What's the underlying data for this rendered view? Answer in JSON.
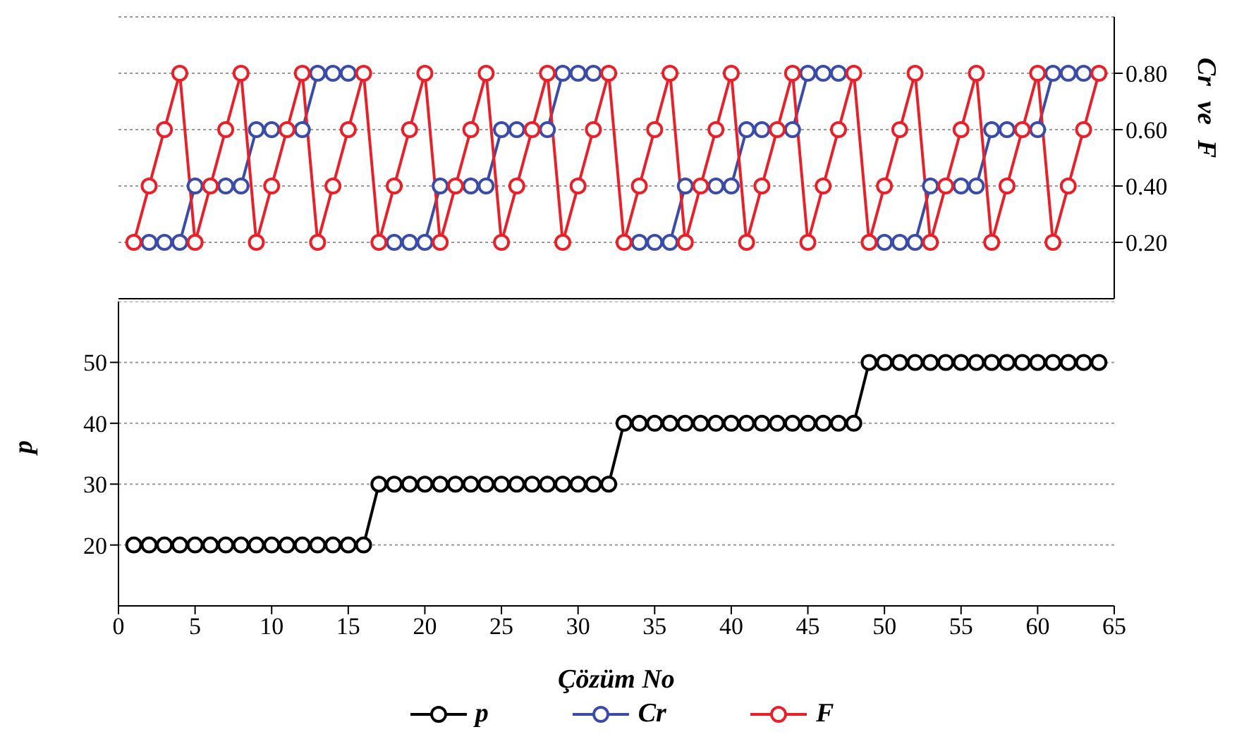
{
  "chart_data": [
    {
      "type": "line",
      "y2label": "Cr ve F",
      "x": [
        1,
        2,
        3,
        4,
        5,
        6,
        7,
        8,
        9,
        10,
        11,
        12,
        13,
        14,
        15,
        16,
        17,
        18,
        19,
        20,
        21,
        22,
        23,
        24,
        25,
        26,
        27,
        28,
        29,
        30,
        31,
        32,
        33,
        34,
        35,
        36,
        37,
        38,
        39,
        40,
        41,
        42,
        43,
        44,
        45,
        46,
        47,
        48,
        49,
        50,
        51,
        52,
        53,
        54,
        55,
        56,
        57,
        58,
        59,
        60,
        61,
        62,
        63,
        64
      ],
      "series": [
        {
          "name": "Cr",
          "color": "#3b4ba8",
          "axis": "y2",
          "values": [
            null,
            0.2,
            0.2,
            0.2,
            0.4,
            null,
            0.4,
            0.4,
            0.6,
            0.6,
            null,
            0.6,
            0.8,
            0.8,
            0.8,
            null,
            null,
            0.2,
            0.2,
            0.2,
            0.4,
            null,
            0.4,
            0.4,
            0.6,
            0.6,
            null,
            0.6,
            0.8,
            0.8,
            0.8,
            null,
            null,
            0.2,
            0.2,
            0.2,
            0.4,
            null,
            0.4,
            0.4,
            0.6,
            0.6,
            null,
            0.6,
            0.8,
            0.8,
            0.8,
            null,
            null,
            0.2,
            0.2,
            0.2,
            0.4,
            null,
            0.4,
            0.4,
            0.6,
            0.6,
            null,
            0.6,
            0.8,
            0.8,
            0.8,
            null
          ]
        },
        {
          "name": "F",
          "color": "#e8202a",
          "axis": "y2",
          "values": [
            0.2,
            0.4,
            0.6,
            0.8,
            0.2,
            0.4,
            0.6,
            0.8,
            0.2,
            0.4,
            0.6,
            0.8,
            0.2,
            0.4,
            0.6,
            0.8,
            0.2,
            0.4,
            0.6,
            0.8,
            0.2,
            0.4,
            0.6,
            0.8,
            0.2,
            0.4,
            0.6,
            0.8,
            0.2,
            0.4,
            0.6,
            0.8,
            0.2,
            0.4,
            0.6,
            0.8,
            0.2,
            0.4,
            0.6,
            0.8,
            0.2,
            0.4,
            0.6,
            0.8,
            0.2,
            0.4,
            0.6,
            0.8,
            0.2,
            0.4,
            0.6,
            0.8,
            0.2,
            0.4,
            0.6,
            0.8,
            0.2,
            0.4,
            0.6,
            0.8,
            0.2,
            0.4,
            0.6,
            0.8
          ]
        }
      ],
      "xlim": [
        0,
        65
      ],
      "y2lim": [
        0,
        1
      ],
      "y2ticks": [
        {
          "value": 0.2,
          "label": "0.20"
        },
        {
          "value": 0.4,
          "label": "0.40"
        },
        {
          "value": 0.6,
          "label": "0.60"
        },
        {
          "value": 0.8,
          "label": "0.80"
        }
      ],
      "tick_labels": "y2",
      "grid": "y",
      "legend": "bottom",
      "marker": "circle",
      "line_style": "solid"
    },
    {
      "type": "line",
      "xlabel": "Çözüm No",
      "ylabel": "p",
      "x": [
        1,
        2,
        3,
        4,
        5,
        6,
        7,
        8,
        9,
        10,
        11,
        12,
        13,
        14,
        15,
        16,
        17,
        18,
        19,
        20,
        21,
        22,
        23,
        24,
        25,
        26,
        27,
        28,
        29,
        30,
        31,
        32,
        33,
        34,
        35,
        36,
        37,
        38,
        39,
        40,
        41,
        42,
        43,
        44,
        45,
        46,
        47,
        48,
        49,
        50,
        51,
        52,
        53,
        54,
        55,
        56,
        57,
        58,
        59,
        60,
        61,
        62,
        63,
        64
      ],
      "series": [
        {
          "name": "p",
          "color": "#000000",
          "values": [
            20,
            20,
            20,
            20,
            20,
            20,
            20,
            20,
            20,
            20,
            20,
            20,
            20,
            20,
            20,
            20,
            30,
            30,
            30,
            30,
            30,
            30,
            30,
            30,
            30,
            30,
            30,
            30,
            30,
            30,
            30,
            30,
            40,
            40,
            40,
            40,
            40,
            40,
            40,
            40,
            40,
            40,
            40,
            40,
            40,
            40,
            40,
            40,
            50,
            50,
            50,
            50,
            50,
            50,
            50,
            50,
            50,
            50,
            50,
            50,
            50,
            50,
            50,
            50
          ]
        }
      ],
      "xlim": [
        0,
        65
      ],
      "xticks": [
        0,
        5,
        10,
        15,
        20,
        25,
        30,
        35,
        40,
        45,
        50,
        55,
        60,
        65
      ],
      "ylim": [
        10,
        60
      ],
      "yticks": [
        20,
        30,
        40,
        50
      ],
      "grid": "y",
      "legend": "bottom",
      "marker": "circle",
      "line_style": "solid"
    }
  ]
}
